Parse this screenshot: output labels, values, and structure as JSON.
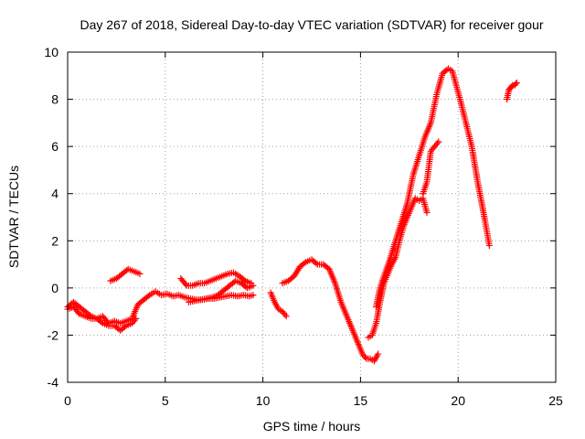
{
  "chart_data": {
    "type": "scatter",
    "title": "Day 267 of 2018, Sidereal Day-to-day VTEC variation (SDTVAR) for receiver gour",
    "xlabel": "GPS time / hours",
    "ylabel": "SDTVAR / TECUs",
    "xlim": [
      0,
      25
    ],
    "ylim": [
      -4,
      10
    ],
    "xticks": [
      "0",
      "5",
      "10",
      "15",
      "20",
      "25"
    ],
    "yticks": [
      "-4",
      "-2",
      "0",
      "2",
      "4",
      "6",
      "8",
      "10"
    ],
    "grid": true,
    "marker": "+",
    "colors": {
      "series": "#ff0000",
      "grid": "#a0a0a0",
      "axis": "#000000"
    },
    "series": [
      {
        "name": "SDTVAR",
        "segments": [
          {
            "x": [
              0.0,
              0.3,
              0.6,
              0.9,
              1.2,
              1.5,
              1.8,
              2.1,
              2.4,
              2.7,
              3.0,
              3.3,
              3.6,
              3.9,
              4.2,
              4.5,
              4.8,
              5.1,
              5.4,
              5.7,
              6.0,
              6.3,
              6.6,
              6.9,
              7.2,
              7.5,
              7.8,
              8.1,
              8.4,
              8.7,
              9.0,
              9.3,
              9.5
            ],
            "y": [
              -0.8,
              -0.6,
              -0.8,
              -1.0,
              -1.2,
              -1.3,
              -1.2,
              -1.5,
              -1.4,
              -1.5,
              -1.4,
              -1.3,
              -0.7,
              -0.5,
              -0.3,
              -0.15,
              -0.3,
              -0.25,
              -0.35,
              -0.3,
              -0.4,
              -0.45,
              -0.5,
              -0.5,
              -0.45,
              -0.45,
              -0.4,
              -0.35,
              -0.3,
              -0.35,
              -0.3,
              -0.35,
              -0.3
            ]
          },
          {
            "x": [
              0.0,
              0.3,
              0.6,
              0.9,
              1.2,
              1.5,
              1.8,
              2.1,
              2.4,
              2.7,
              3.0,
              3.3,
              3.5
            ],
            "y": [
              -0.9,
              -0.8,
              -1.1,
              -1.2,
              -1.3,
              -1.3,
              -1.5,
              -1.6,
              -1.6,
              -1.8,
              -1.6,
              -1.5,
              -1.3
            ]
          },
          {
            "x": [
              2.2,
              2.5,
              2.8,
              3.1,
              3.4,
              3.7
            ],
            "y": [
              0.3,
              0.4,
              0.6,
              0.8,
              0.7,
              0.6
            ]
          },
          {
            "x": [
              5.8,
              6.1,
              6.4,
              6.7,
              7.0,
              7.3,
              7.6,
              7.9,
              8.2,
              8.5,
              8.8,
              9.1,
              9.4
            ],
            "y": [
              0.4,
              0.1,
              0.1,
              0.2,
              0.2,
              0.3,
              0.4,
              0.5,
              0.6,
              0.65,
              0.5,
              0.3,
              0.2
            ]
          },
          {
            "x": [
              6.2,
              6.5,
              6.8,
              7.1,
              7.4,
              7.7,
              8.0,
              8.3,
              8.6,
              8.9,
              9.2,
              9.5
            ],
            "y": [
              -0.6,
              -0.55,
              -0.5,
              -0.45,
              -0.4,
              -0.3,
              -0.1,
              0.1,
              0.3,
              0.2,
              0.0,
              0.1
            ]
          },
          {
            "x": [
              10.4,
              10.6,
              10.8,
              11.0,
              11.2
            ],
            "y": [
              -0.2,
              -0.6,
              -0.9,
              -1.0,
              -1.2
            ]
          },
          {
            "x": [
              11.0,
              11.3,
              11.6,
              11.9,
              12.2,
              12.5,
              12.8,
              13.1,
              13.4,
              13.7,
              14.0,
              14.3,
              14.6,
              14.9,
              15.1,
              15.3,
              15.5,
              15.7,
              15.9
            ],
            "y": [
              0.2,
              0.3,
              0.5,
              0.9,
              1.1,
              1.2,
              1.0,
              1.0,
              0.8,
              0.2,
              -0.6,
              -1.2,
              -1.8,
              -2.4,
              -2.8,
              -3.0,
              -3.0,
              -3.1,
              -2.8
            ]
          },
          {
            "x": [
              15.4,
              15.6,
              15.8,
              16.0,
              16.2,
              16.4,
              16.6,
              16.8,
              17.0,
              17.2,
              17.4,
              17.6,
              17.8,
              18.0,
              18.2,
              18.4
            ],
            "y": [
              -2.1,
              -2.0,
              -1.5,
              -0.6,
              0.2,
              0.6,
              1.0,
              1.3,
              2.0,
              2.6,
              3.0,
              3.4,
              3.8,
              3.7,
              3.8,
              3.2
            ]
          },
          {
            "x": [
              15.8,
              16.0,
              16.2,
              16.5,
              16.8,
              17.1,
              17.4,
              17.7,
              18.0,
              18.3,
              18.6,
              18.9,
              19.2,
              19.5,
              19.7,
              19.9,
              20.1,
              20.4,
              20.7,
              21.0,
              21.3,
              21.6
            ],
            "y": [
              -0.8,
              0.0,
              0.5,
              1.2,
              2.0,
              2.8,
              3.6,
              4.8,
              5.6,
              6.4,
              7.0,
              8.2,
              9.1,
              9.3,
              9.2,
              8.6,
              8.0,
              7.0,
              6.0,
              4.5,
              3.2,
              1.8
            ]
          },
          {
            "x": [
              18.2,
              18.4,
              18.6,
              18.8,
              19.0
            ],
            "y": [
              4.0,
              4.5,
              5.8,
              6.0,
              6.2
            ]
          },
          {
            "x": [
              22.5,
              22.6,
              22.7,
              22.8,
              22.9,
              23.0
            ],
            "y": [
              8.0,
              8.4,
              8.5,
              8.6,
              8.6,
              8.7
            ]
          }
        ]
      }
    ]
  }
}
